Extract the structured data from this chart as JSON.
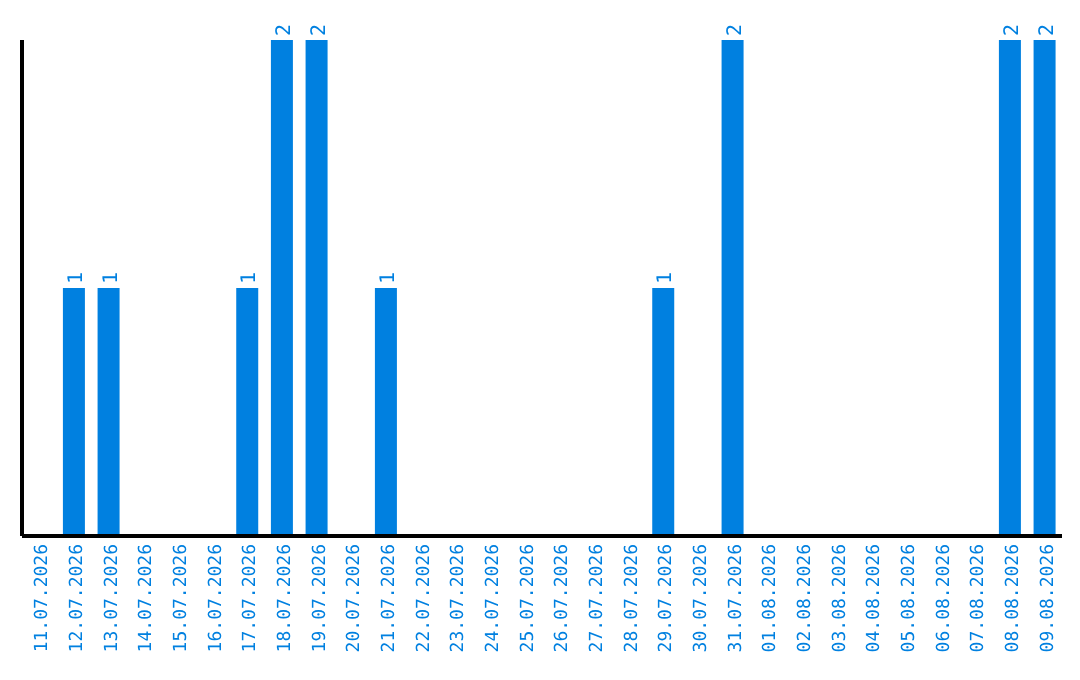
{
  "chart_data": {
    "type": "bar",
    "categories": [
      "11.07.2026",
      "12.07.2026",
      "13.07.2026",
      "14.07.2026",
      "15.07.2026",
      "16.07.2026",
      "17.07.2026",
      "18.07.2026",
      "19.07.2026",
      "20.07.2026",
      "21.07.2026",
      "22.07.2026",
      "23.07.2026",
      "24.07.2026",
      "25.07.2026",
      "26.07.2026",
      "27.07.2026",
      "28.07.2026",
      "29.07.2026",
      "30.07.2026",
      "31.07.2026",
      "01.08.2026",
      "02.08.2026",
      "03.08.2026",
      "04.08.2026",
      "05.08.2026",
      "06.08.2026",
      "07.08.2026",
      "08.08.2026",
      "09.08.2026"
    ],
    "values": [
      0,
      1,
      1,
      0,
      0,
      0,
      1,
      2,
      2,
      0,
      1,
      0,
      0,
      0,
      0,
      0,
      0,
      0,
      1,
      0,
      2,
      0,
      0,
      0,
      0,
      0,
      0,
      0,
      2,
      2
    ],
    "value_labels": [
      null,
      "1",
      "1",
      null,
      null,
      null,
      "1",
      "2",
      "2",
      null,
      "1",
      null,
      null,
      null,
      null,
      null,
      null,
      null,
      "1",
      null,
      "2",
      null,
      null,
      null,
      null,
      null,
      null,
      null,
      "2",
      "2"
    ],
    "color": "#0080e0",
    "ylim": [
      0,
      2
    ],
    "tick_labels": "x",
    "grid": false,
    "legend": false
  }
}
